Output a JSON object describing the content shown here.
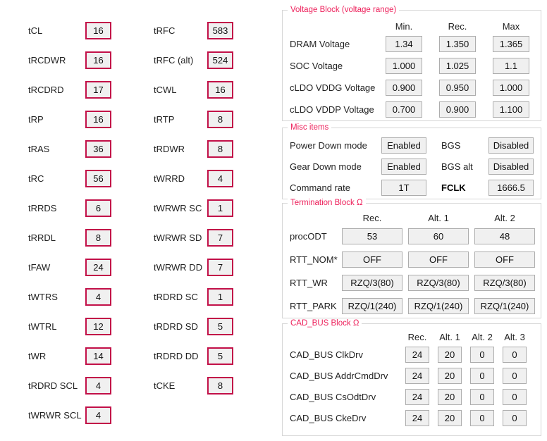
{
  "colors": {
    "box_border": "#c21048",
    "group_title": "#ed1f5a",
    "box_bg": "#f0f0f0",
    "gray_border": "#adadad"
  },
  "timings": {
    "col1": [
      {
        "label": "tCL",
        "value": "16"
      },
      {
        "label": "tRCDWR",
        "value": "16"
      },
      {
        "label": "tRCDRD",
        "value": "17"
      },
      {
        "label": "tRP",
        "value": "16"
      },
      {
        "label": "tRAS",
        "value": "36"
      },
      {
        "label": "tRC",
        "value": "56"
      },
      {
        "label": "tRRDS",
        "value": "6"
      },
      {
        "label": "tRRDL",
        "value": "8"
      },
      {
        "label": "tFAW",
        "value": "24"
      },
      {
        "label": "tWTRS",
        "value": "4"
      },
      {
        "label": "tWTRL",
        "value": "12"
      },
      {
        "label": "tWR",
        "value": "14"
      },
      {
        "label": "tRDRD SCL",
        "value": "4"
      },
      {
        "label": "tWRWR SCL",
        "value": "4"
      }
    ],
    "col2": [
      {
        "label": "tRFC",
        "value": "583"
      },
      {
        "label": "tRFC (alt)",
        "value": "524"
      },
      {
        "label": "tCWL",
        "value": "16"
      },
      {
        "label": "tRTP",
        "value": "8"
      },
      {
        "label": "tRDWR",
        "value": "8"
      },
      {
        "label": "tWRRD",
        "value": "4"
      },
      {
        "label": "tWRWR SC",
        "value": "1"
      },
      {
        "label": "tWRWR SD",
        "value": "7"
      },
      {
        "label": "tWRWR DD",
        "value": "7"
      },
      {
        "label": "tRDRD SC",
        "value": "1"
      },
      {
        "label": "tRDRD SD",
        "value": "5"
      },
      {
        "label": "tRDRD DD",
        "value": "5"
      },
      {
        "label": "tCKE",
        "value": "8"
      }
    ]
  },
  "voltage_block": {
    "title": "Voltage Block (voltage range)",
    "headers": [
      "Min.",
      "Rec.",
      "Max"
    ],
    "rows": [
      {
        "label": "DRAM Voltage",
        "values": [
          "1.34",
          "1.350",
          "1.365"
        ]
      },
      {
        "label": "SOC Voltage",
        "values": [
          "1.000",
          "1.025",
          "1.1"
        ]
      },
      {
        "label": "cLDO VDDG Voltage",
        "values": [
          "0.900",
          "0.950",
          "1.000"
        ]
      },
      {
        "label": "cLDO VDDP Voltage",
        "values": [
          "0.700",
          "0.900",
          "1.100"
        ]
      }
    ]
  },
  "misc": {
    "title": "Misc items",
    "rows": [
      {
        "label": "Power Down mode",
        "value": "Enabled",
        "label2": "BGS",
        "value2": "Disabled"
      },
      {
        "label": "Gear Down mode",
        "value": "Enabled",
        "label2": "BGS alt",
        "value2": "Disabled"
      },
      {
        "label": "Command rate",
        "value": "1T",
        "label2": "FCLK",
        "value2": "1666.5"
      }
    ]
  },
  "termination": {
    "title": "Termination Block Ω",
    "headers": [
      "Rec.",
      "Alt. 1",
      "Alt. 2"
    ],
    "rows": [
      {
        "label": "procODT",
        "values": [
          "53",
          "60",
          "48"
        ]
      },
      {
        "label": "RTT_NOM*",
        "values": [
          "OFF",
          "OFF",
          "OFF"
        ]
      },
      {
        "label": "RTT_WR",
        "values": [
          "RZQ/3(80)",
          "RZQ/3(80)",
          "RZQ/3(80)"
        ]
      },
      {
        "label": "RTT_PARK",
        "values": [
          "RZQ/1(240)",
          "RZQ/1(240)",
          "RZQ/1(240)"
        ]
      }
    ]
  },
  "cad_bus": {
    "title": "CAD_BUS Block Ω",
    "headers": [
      "Rec.",
      "Alt. 1",
      "Alt. 2",
      "Alt. 3"
    ],
    "rows": [
      {
        "label": "CAD_BUS ClkDrv",
        "values": [
          "24",
          "20",
          "0",
          "0"
        ]
      },
      {
        "label": "CAD_BUS AddrCmdDrv",
        "values": [
          "24",
          "20",
          "0",
          "0"
        ]
      },
      {
        "label": "CAD_BUS CsOdtDrv",
        "values": [
          "24",
          "20",
          "0",
          "0"
        ]
      },
      {
        "label": "CAD_BUS CkeDrv",
        "values": [
          "24",
          "20",
          "0",
          "0"
        ]
      }
    ]
  }
}
